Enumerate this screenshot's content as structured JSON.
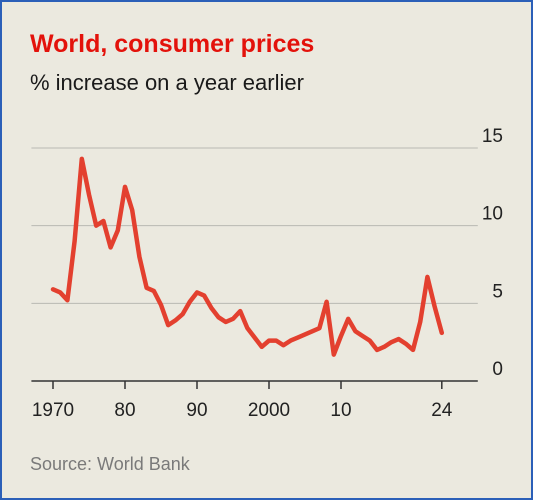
{
  "chart_data": {
    "type": "line",
    "title": "World, consumer prices",
    "subtitle": "% increase on a year earlier",
    "source": "Source: World Bank",
    "x": [
      1970,
      1971,
      1972,
      1973,
      1974,
      1975,
      1976,
      1977,
      1978,
      1979,
      1980,
      1981,
      1982,
      1983,
      1984,
      1985,
      1986,
      1987,
      1988,
      1989,
      1990,
      1991,
      1992,
      1993,
      1994,
      1995,
      1996,
      1997,
      1998,
      1999,
      2000,
      2001,
      2002,
      2003,
      2004,
      2005,
      2006,
      2007,
      2008,
      2009,
      2010,
      2011,
      2012,
      2013,
      2014,
      2015,
      2016,
      2017,
      2018,
      2019,
      2020,
      2021,
      2022,
      2023,
      2024
    ],
    "series": [
      {
        "name": "World",
        "color": "#e3402f",
        "values": [
          5.9,
          5.7,
          5.2,
          9.0,
          14.3,
          12.0,
          10.0,
          10.3,
          8.6,
          9.7,
          12.5,
          11.0,
          8.0,
          6.0,
          5.8,
          4.9,
          3.6,
          3.9,
          4.3,
          5.1,
          5.7,
          5.5,
          4.7,
          4.1,
          3.8,
          4.0,
          4.5,
          3.4,
          2.8,
          2.2,
          2.6,
          2.6,
          2.3,
          2.6,
          2.8,
          3.0,
          3.2,
          3.4,
          5.1,
          1.7,
          2.9,
          4.0,
          3.2,
          2.9,
          2.6,
          2.0,
          2.2,
          2.5,
          2.7,
          2.4,
          2.0,
          3.8,
          6.7,
          4.8,
          3.1
        ]
      }
    ],
    "xlim": [
      1967,
      2029
    ],
    "xticks": [
      {
        "value": 1970,
        "label": "1970"
      },
      {
        "value": 1980,
        "label": "80"
      },
      {
        "value": 1990,
        "label": "90"
      },
      {
        "value": 2000,
        "label": "2000"
      },
      {
        "value": 2010,
        "label": "10"
      },
      {
        "value": 2024,
        "label": "24"
      }
    ],
    "ylim": [
      0,
      15
    ],
    "yticks": [
      0,
      5,
      10,
      15
    ],
    "grid": true
  }
}
